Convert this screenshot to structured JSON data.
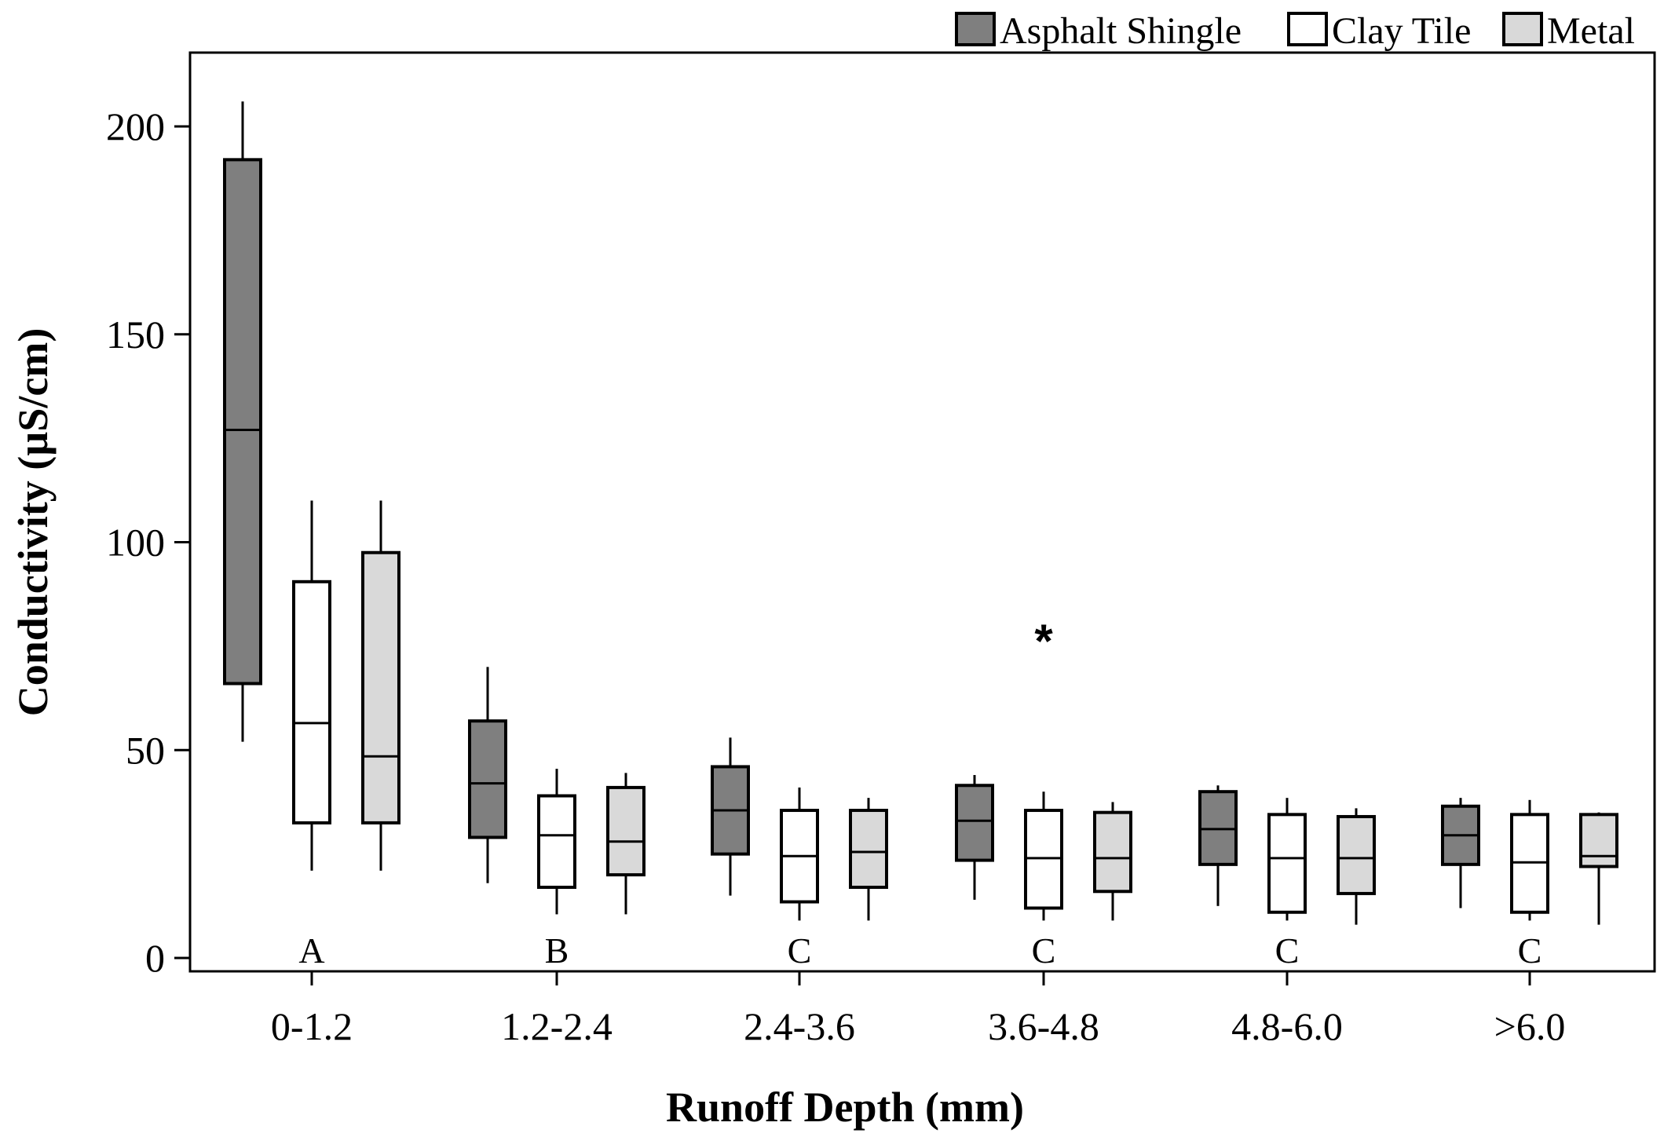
{
  "chart_data": {
    "type": "boxplot",
    "title": "",
    "xlabel": "Runoff Depth (mm)",
    "ylabel": "Conductivity (µS/cm)",
    "ylim": [
      0,
      220
    ],
    "yticks": [
      0,
      50,
      100,
      150,
      200
    ],
    "categories": [
      "0-1.2",
      "1.2-2.4",
      "2.4-3.6",
      "3.6-4.8",
      "4.8-6.0",
      ">6.0"
    ],
    "group_letters": [
      "A",
      "B",
      "C",
      "C",
      "C",
      "C"
    ],
    "legend": {
      "position": "top-right",
      "entries": [
        {
          "name": "Asphalt Shingle",
          "color": "#7f7f7f"
        },
        {
          "name": "Clay Tile",
          "color": "#ffffff"
        },
        {
          "name": "Metal",
          "color": "#d9d9d9"
        }
      ]
    },
    "series": [
      {
        "name": "Asphalt Shingle",
        "color": "#7f7f7f",
        "boxes": [
          {
            "low": 52,
            "q1": 66,
            "median": 127,
            "q3": 192,
            "high": 206
          },
          {
            "low": 18,
            "q1": 29,
            "median": 42,
            "q3": 57,
            "high": 70
          },
          {
            "low": 15,
            "q1": 25,
            "median": 35.5,
            "q3": 46,
            "high": 53
          },
          {
            "low": 14,
            "q1": 23.5,
            "median": 33,
            "q3": 41.5,
            "high": 44
          },
          {
            "low": 12.5,
            "q1": 22.5,
            "median": 31,
            "q3": 40,
            "high": 41.5
          },
          {
            "low": 12,
            "q1": 22.5,
            "median": 29.5,
            "q3": 36.5,
            "high": 38.5
          }
        ]
      },
      {
        "name": "Clay Tile",
        "color": "#ffffff",
        "boxes": [
          {
            "low": 21,
            "q1": 32.5,
            "median": 56.5,
            "q3": 90.5,
            "high": 110
          },
          {
            "low": 10.5,
            "q1": 17,
            "median": 29.5,
            "q3": 39,
            "high": 45.5
          },
          {
            "low": 9,
            "q1": 13.5,
            "median": 24.5,
            "q3": 35.5,
            "high": 41
          },
          {
            "low": 9,
            "q1": 12,
            "median": 24,
            "q3": 35.5,
            "high": 40
          },
          {
            "low": 9,
            "q1": 11,
            "median": 24,
            "q3": 34.5,
            "high": 38.5
          },
          {
            "low": 9,
            "q1": 11,
            "median": 23,
            "q3": 34.5,
            "high": 38
          }
        ]
      },
      {
        "name": "Metal",
        "color": "#d9d9d9",
        "boxes": [
          {
            "low": 21,
            "q1": 32.5,
            "median": 48.5,
            "q3": 97.5,
            "high": 110
          },
          {
            "low": 10.5,
            "q1": 20,
            "median": 28,
            "q3": 41,
            "high": 44.5
          },
          {
            "low": 9,
            "q1": 17,
            "median": 25.5,
            "q3": 35.5,
            "high": 38.5
          },
          {
            "low": 9,
            "q1": 16,
            "median": 24,
            "q3": 35,
            "high": 37.5
          },
          {
            "low": 8,
            "q1": 15.5,
            "median": 24,
            "q3": 34,
            "high": 36
          },
          {
            "low": 8,
            "q1": 22,
            "median": 24.5,
            "q3": 34.5,
            "high": 35
          }
        ]
      }
    ],
    "outliers": [
      {
        "category": "3.6-4.8",
        "series": "Clay Tile",
        "value": 78,
        "marker": "*"
      }
    ]
  }
}
